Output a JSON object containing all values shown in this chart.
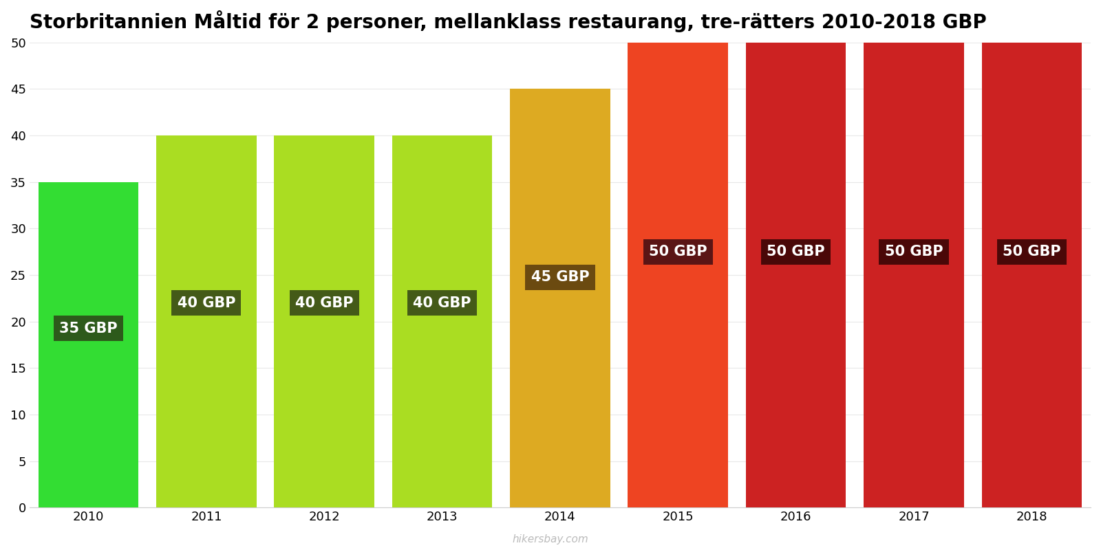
{
  "title": "Storbritannien Måltid för 2 personer, mellanklass restaurang, tre-rätters 2010-2018 GBP",
  "years": [
    2010,
    2011,
    2012,
    2013,
    2014,
    2015,
    2016,
    2017,
    2018
  ],
  "values": [
    35,
    40,
    40,
    40,
    45,
    50,
    50,
    50,
    50
  ],
  "bar_colors": [
    "#33dd33",
    "#aadd22",
    "#aadd22",
    "#aadd22",
    "#ddaa22",
    "#ee4422",
    "#cc2222",
    "#cc2222",
    "#cc2222"
  ],
  "label_bg_colors": [
    "#2d5a1b",
    "#445a18",
    "#445a18",
    "#445a18",
    "#6b4a10",
    "#5a1515",
    "#4a0808",
    "#4a0808",
    "#4a0808"
  ],
  "ylim": [
    0,
    50
  ],
  "yticks": [
    0,
    5,
    10,
    15,
    20,
    25,
    30,
    35,
    40,
    45,
    50
  ],
  "watermark": "hikersbay.com",
  "background_color": "#ffffff",
  "title_fontsize": 20,
  "tick_fontsize": 13,
  "label_fontsize": 15,
  "bar_width": 0.85
}
